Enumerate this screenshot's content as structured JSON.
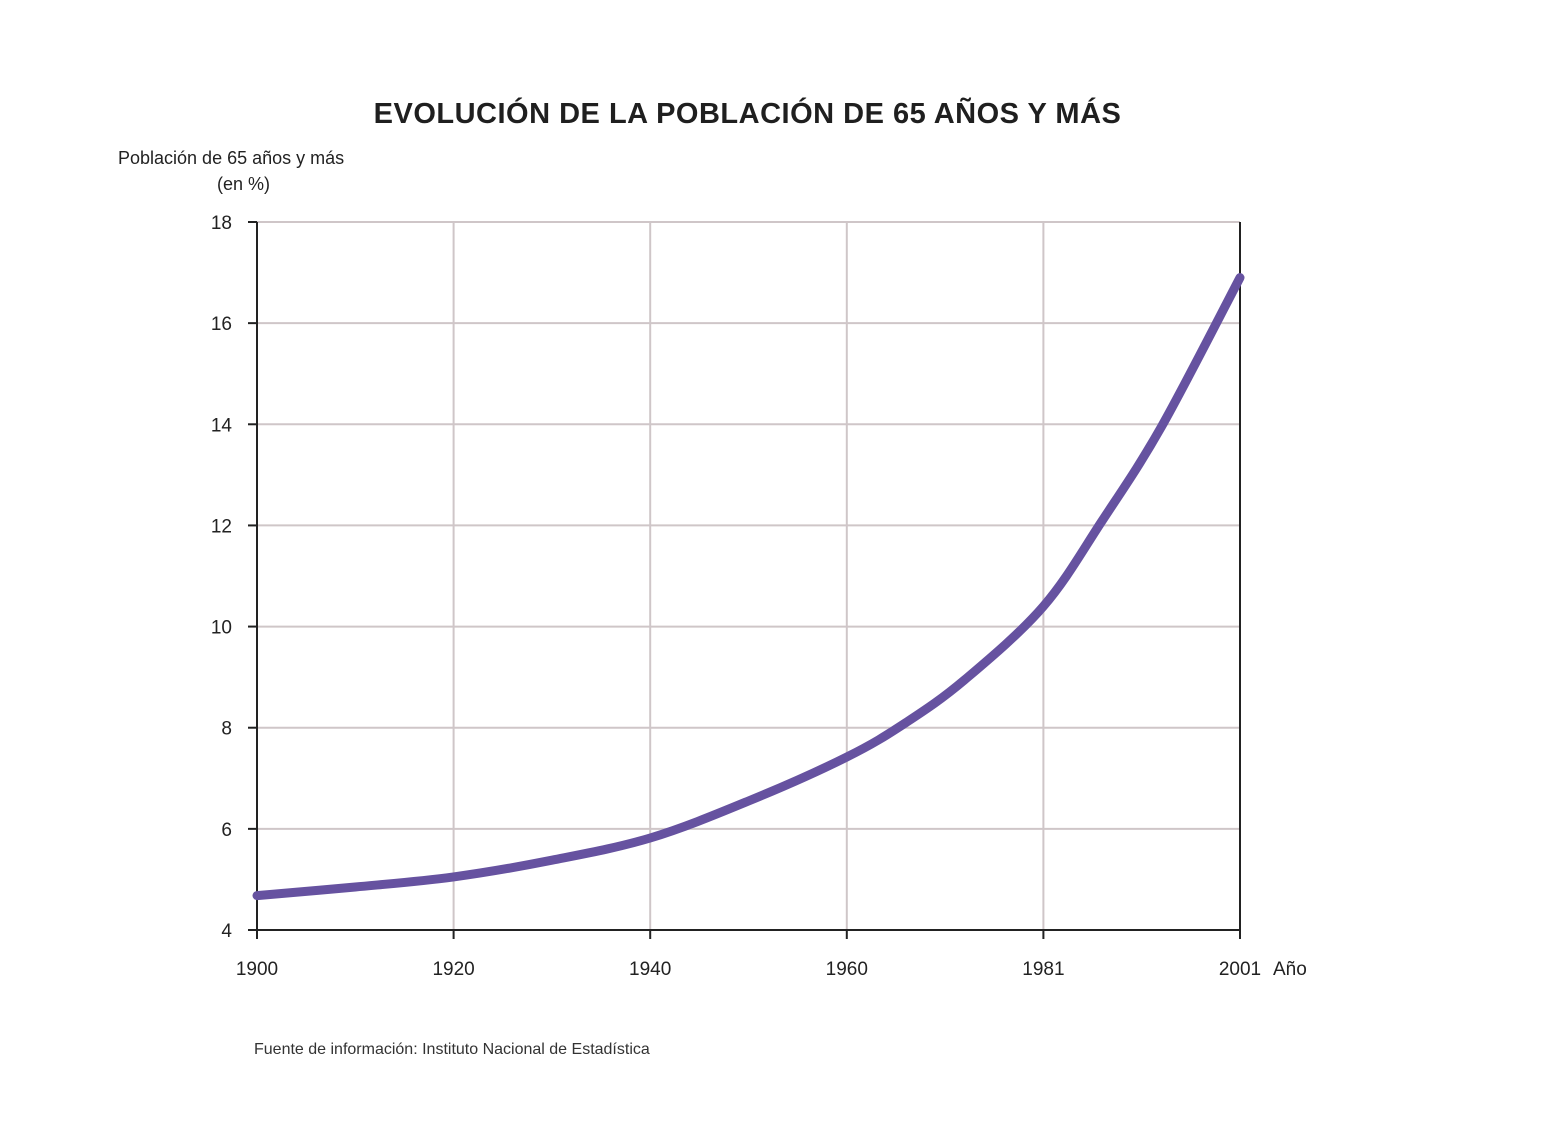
{
  "chart_data": {
    "type": "line",
    "title": "EVOLUCIÓN DE LA POBLACIÓN DE 65 AÑOS Y MÁS",
    "ylabel_line1": "Población de 65 años y más",
    "ylabel_line2": "(en %)",
    "xlabel": "Año",
    "x_ticks": [
      "1900",
      "1920",
      "1940",
      "1960",
      "1981",
      "2001"
    ],
    "y_ticks": [
      4,
      6,
      8,
      10,
      12,
      14,
      16,
      18
    ],
    "ylim": [
      4,
      18
    ],
    "grid": true,
    "series": [
      {
        "name": "Población de 65 años y más (en %)",
        "color": "#6652a0",
        "points": [
          {
            "tick": 0.0,
            "value": 4.68
          },
          {
            "tick": 0.5,
            "value": 4.85
          },
          {
            "tick": 1.0,
            "value": 5.05
          },
          {
            "tick": 1.5,
            "value": 5.38
          },
          {
            "tick": 2.0,
            "value": 5.82
          },
          {
            "tick": 2.5,
            "value": 6.55
          },
          {
            "tick": 3.0,
            "value": 7.42
          },
          {
            "tick": 3.3,
            "value": 8.1
          },
          {
            "tick": 3.6,
            "value": 8.95
          },
          {
            "tick": 4.0,
            "value": 10.4
          },
          {
            "tick": 4.3,
            "value": 12.1
          },
          {
            "tick": 4.6,
            "value": 13.95
          },
          {
            "tick": 5.0,
            "value": 16.9
          }
        ]
      }
    ],
    "source": "Fuente de información: Instituto Nacional de Estadística"
  }
}
